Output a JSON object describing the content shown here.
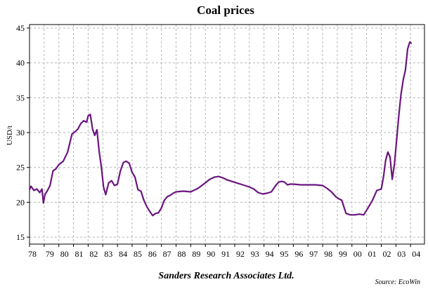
{
  "chart_data": {
    "type": "line",
    "title": "Coal prices",
    "ylabel": "USD/t",
    "xlabel": "",
    "footer": "Sanders Research Associates Ltd.",
    "source": "Source: EcoWin",
    "ylim": [
      14,
      45.5
    ],
    "xlim": [
      1978.0,
      2004.95
    ],
    "yticks": [
      15,
      20,
      25,
      30,
      35,
      40,
      45
    ],
    "xticks": [
      {
        "label": "78",
        "x": 1978.0
      },
      {
        "label": "79",
        "x": 1979.0
      },
      {
        "label": "80",
        "x": 1980.0
      },
      {
        "label": "81",
        "x": 1981.0
      },
      {
        "label": "82",
        "x": 1982.0
      },
      {
        "label": "83",
        "x": 1983.0
      },
      {
        "label": "84",
        "x": 1984.0
      },
      {
        "label": "85",
        "x": 1985.0
      },
      {
        "label": "86",
        "x": 1986.0
      },
      {
        "label": "87",
        "x": 1987.0
      },
      {
        "label": "88",
        "x": 1988.0
      },
      {
        "label": "89",
        "x": 1989.0
      },
      {
        "label": "90",
        "x": 1990.0
      },
      {
        "label": "91",
        "x": 1991.0
      },
      {
        "label": "92",
        "x": 1992.0
      },
      {
        "label": "93",
        "x": 1993.0
      },
      {
        "label": "94",
        "x": 1994.0
      },
      {
        "label": "95",
        "x": 1995.0
      },
      {
        "label": "96",
        "x": 1996.0
      },
      {
        "label": "97",
        "x": 1997.0
      },
      {
        "label": "98",
        "x": 1998.0
      },
      {
        "label": "99",
        "x": 1999.0
      },
      {
        "label": "00",
        "x": 2000.0
      },
      {
        "label": "01",
        "x": 2001.0
      },
      {
        "label": "02",
        "x": 2002.0
      },
      {
        "label": "03",
        "x": 2003.0
      },
      {
        "label": "04",
        "x": 2004.0
      }
    ],
    "grid": true,
    "series": [
      {
        "name": "",
        "color": "#6b1580",
        "x": [
          1978.0,
          1978.1,
          1978.3,
          1978.5,
          1978.7,
          1978.85,
          1978.95,
          1979.05,
          1979.2,
          1979.4,
          1979.6,
          1979.8,
          1980.0,
          1980.3,
          1980.6,
          1980.9,
          1981.1,
          1981.3,
          1981.5,
          1981.7,
          1981.9,
          1982.0,
          1982.15,
          1982.3,
          1982.45,
          1982.6,
          1982.75,
          1982.9,
          1983.05,
          1983.2,
          1983.4,
          1983.6,
          1983.8,
          1984.0,
          1984.2,
          1984.4,
          1984.6,
          1984.8,
          1985.0,
          1985.2,
          1985.4,
          1985.6,
          1985.8,
          1986.0,
          1986.2,
          1986.4,
          1986.6,
          1986.8,
          1987.0,
          1987.2,
          1987.4,
          1987.6,
          1987.8,
          1988.0,
          1988.5,
          1989.0,
          1989.5,
          1990.0,
          1990.3,
          1990.6,
          1990.9,
          1991.2,
          1991.5,
          1991.8,
          1992.1,
          1992.4,
          1992.7,
          1993.0,
          1993.3,
          1993.6,
          1993.9,
          1994.2,
          1994.5,
          1994.8,
          1995.0,
          1995.2,
          1995.4,
          1995.6,
          1995.8,
          1996.0,
          1996.5,
          1997.0,
          1997.5,
          1998.0,
          1998.3,
          1998.6,
          1998.9,
          1999.1,
          1999.3,
          1999.6,
          1999.9,
          2000.2,
          2000.5,
          2000.8,
          2001.1,
          2001.4,
          2001.7,
          2002.0,
          2002.15,
          2002.3,
          2002.45,
          2002.6,
          2002.75,
          2002.9,
          2003.05,
          2003.2,
          2003.35,
          2003.5,
          2003.65,
          2003.8,
          2003.95,
          2004.05
        ],
        "y": [
          21.8,
          22.3,
          21.7,
          21.9,
          21.4,
          21.9,
          19.9,
          21.1,
          21.6,
          22.4,
          24.5,
          24.8,
          25.4,
          25.9,
          27.2,
          29.8,
          30.1,
          30.5,
          31.3,
          31.7,
          31.5,
          32.4,
          32.6,
          30.5,
          29.6,
          30.4,
          27.3,
          25.1,
          22.2,
          21.1,
          22.8,
          23.1,
          22.4,
          22.6,
          24.5,
          25.7,
          25.9,
          25.6,
          24.3,
          23.6,
          21.8,
          21.6,
          20.3,
          19.4,
          18.7,
          18.1,
          18.4,
          18.5,
          19.2,
          20.3,
          20.8,
          21.0,
          21.3,
          21.5,
          21.6,
          21.5,
          22.0,
          22.8,
          23.3,
          23.6,
          23.7,
          23.5,
          23.2,
          23.0,
          22.8,
          22.6,
          22.4,
          22.2,
          21.9,
          21.4,
          21.2,
          21.3,
          21.5,
          22.4,
          22.9,
          23.0,
          22.9,
          22.5,
          22.6,
          22.6,
          22.5,
          22.5,
          22.5,
          22.4,
          22.0,
          21.5,
          20.8,
          20.5,
          20.3,
          18.4,
          18.2,
          18.2,
          18.3,
          18.2,
          19.2,
          20.3,
          21.7,
          21.9,
          23.6,
          26.0,
          27.2,
          26.5,
          23.3,
          25.5,
          29.0,
          32.5,
          35.5,
          37.6,
          39.0,
          42.0,
          43.0,
          42.8
        ]
      }
    ]
  }
}
